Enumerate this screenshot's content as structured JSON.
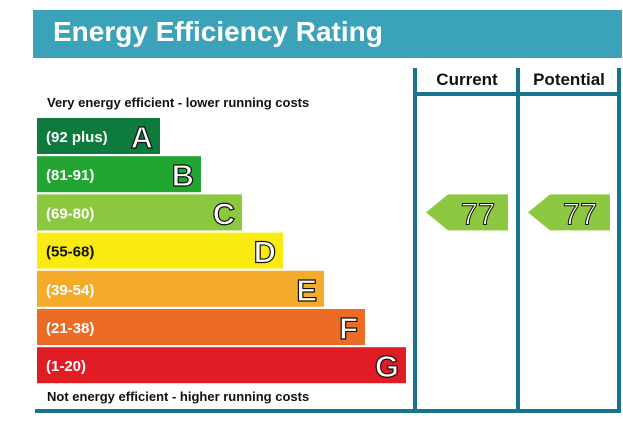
{
  "title": "Energy Efficiency Rating",
  "chart_data": {
    "type": "bar",
    "title": "Energy Efficiency Rating",
    "top_caption": "Very energy efficient - lower running costs",
    "bottom_caption": "Not energy efficient - higher running costs",
    "columns": [
      "Current",
      "Potential"
    ],
    "bands": [
      {
        "range": "(92 plus)",
        "letter": "A",
        "color": "#0f7a3d"
      },
      {
        "range": "(81-91)",
        "letter": "B",
        "color": "#22a531"
      },
      {
        "range": "(69-80)",
        "letter": "C",
        "color": "#8cc83f"
      },
      {
        "range": "(55-68)",
        "letter": "D",
        "color": "#f9ea10"
      },
      {
        "range": "(39-54)",
        "letter": "E",
        "color": "#f5ab2a"
      },
      {
        "range": "(21-38)",
        "letter": "F",
        "color": "#ec6c26"
      },
      {
        "range": "(1-20)",
        "letter": "G",
        "color": "#e01d25"
      }
    ],
    "current": {
      "value": 77,
      "band": "C"
    },
    "potential": {
      "value": 77,
      "band": "C"
    },
    "frame_color": "#1a7490"
  }
}
